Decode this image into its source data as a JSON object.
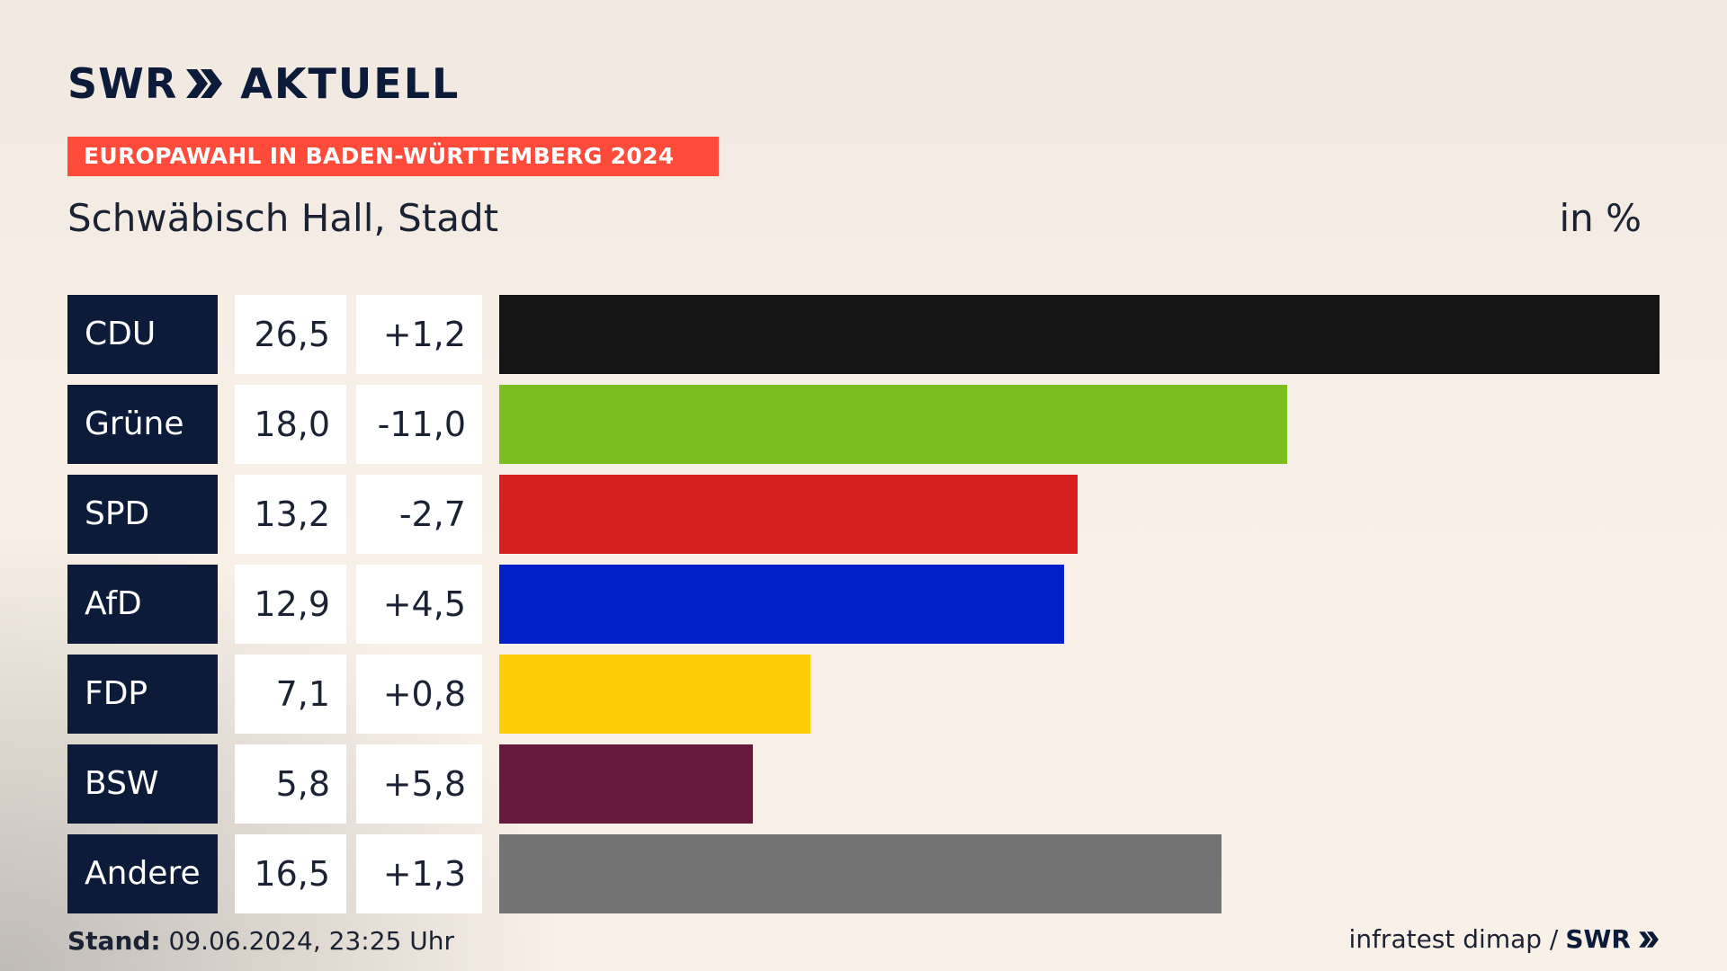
{
  "brand": {
    "logo_text": "SWR",
    "title": "AKTUELL"
  },
  "badge": "EUROPAWAHL IN BADEN-WÜRTTEMBERG 2024",
  "subtitle": "Schwäbisch Hall, Stadt",
  "unit": "in %",
  "footer": {
    "stand_label": "Stand:",
    "stand_value": "09.06.2024, 23:25 Uhr",
    "source": "infratest dimap /",
    "source_logo": "SWR"
  },
  "chart_data": {
    "type": "bar",
    "orientation": "horizontal",
    "title": "",
    "categories": [
      "CDU",
      "Grüne",
      "SPD",
      "AfD",
      "FDP",
      "BSW",
      "Andere"
    ],
    "values": [
      26.5,
      18.0,
      13.2,
      12.9,
      7.1,
      5.8,
      16.5
    ],
    "value_labels": [
      "26,5",
      "18,0",
      "13,2",
      "12,9",
      "7,1",
      "5,8",
      "16,5"
    ],
    "change_labels": [
      "+1,2",
      "-11,0",
      "-2,7",
      "+4,5",
      "+0,8",
      "+5,8",
      "+1,3"
    ],
    "colors": [
      "#141414",
      "#7bbf1e",
      "#d62020",
      "#0020c8",
      "#ffcd05",
      "#661a3e",
      "#737373"
    ],
    "xlim": [
      0,
      26.5
    ]
  }
}
